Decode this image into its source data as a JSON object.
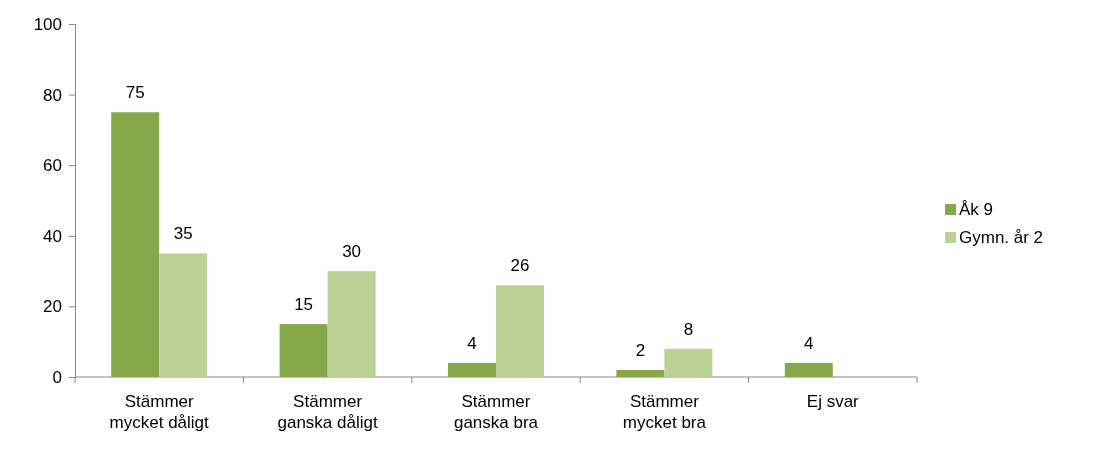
{
  "chart_data": {
    "type": "bar",
    "categories": [
      "Stämmer mycket dåligt",
      "Stämmer ganska dåligt",
      "Stämmer ganska bra",
      "Stämmer mycket bra",
      "Ej svar"
    ],
    "series": [
      {
        "name": "Åk 9",
        "color": "#86a84b",
        "values": [
          75,
          15,
          4,
          2,
          4
        ]
      },
      {
        "name": "Gymn. år 2",
        "color": "#bcd196",
        "values": [
          35,
          30,
          26,
          8,
          null
        ]
      }
    ],
    "ylim": [
      0,
      100
    ],
    "yticks": [
      0,
      20,
      40,
      60,
      80,
      100
    ],
    "grid": false,
    "legend": "right",
    "data_labels": true
  }
}
